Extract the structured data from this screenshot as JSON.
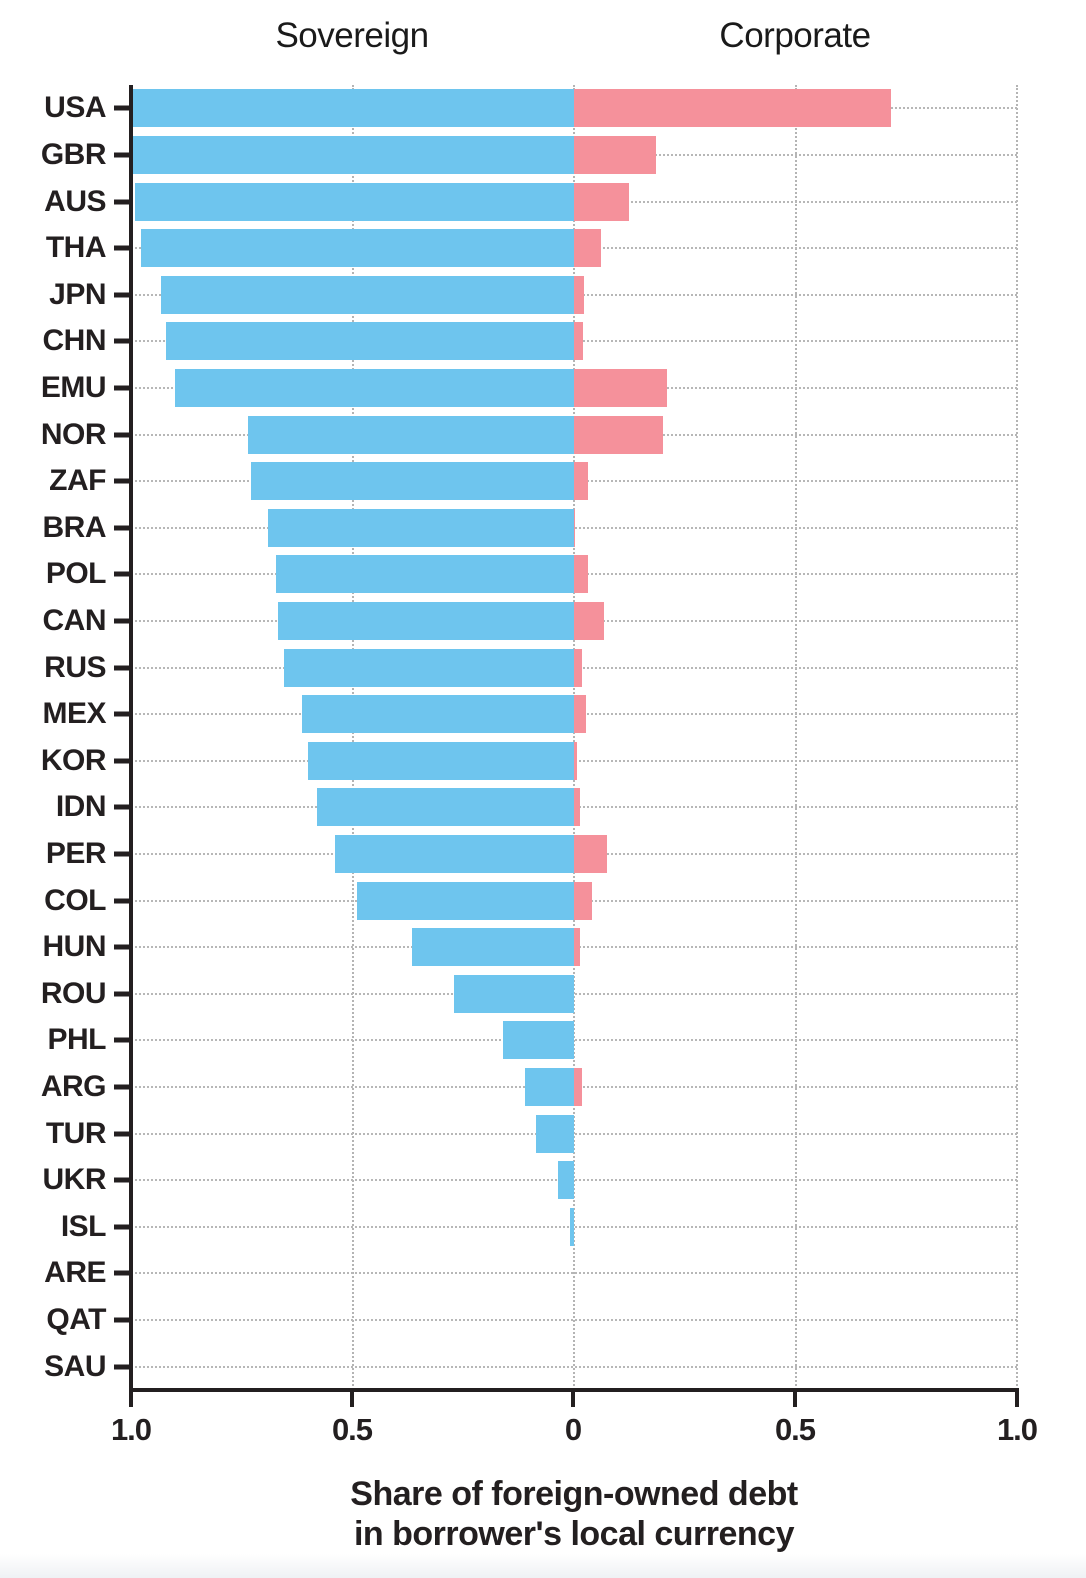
{
  "chart_data": {
    "type": "bar",
    "orientation": "diverging-horizontal",
    "left_header": "Sovereign",
    "right_header": "Corporate",
    "caption_line1": "Share of foreign-owned debt",
    "caption_line2": "in borrower's local currency",
    "axis_range_each_side": [
      0,
      1.0
    ],
    "grid": "dotted",
    "colors": {
      "sovereign": "#6ec5ee",
      "corporate": "#f5919b",
      "text": "#231f20",
      "gridline": "#b4b4b4"
    },
    "x_ticks": [
      {
        "label": "1.0",
        "pos": 0
      },
      {
        "label": "0.5",
        "pos": 25
      },
      {
        "label": "0",
        "pos": 50
      },
      {
        "label": "0.5",
        "pos": 75
      },
      {
        "label": "1.0",
        "pos": 100
      }
    ],
    "series": [
      {
        "name": "Sovereign",
        "side": "left"
      },
      {
        "name": "Corporate",
        "side": "right"
      }
    ],
    "rows": [
      {
        "code": "USA",
        "sovereign": 1.0,
        "corporate": 0.715
      },
      {
        "code": "GBR",
        "sovereign": 1.0,
        "corporate": 0.185
      },
      {
        "code": "AUS",
        "sovereign": 0.99,
        "corporate": 0.125
      },
      {
        "code": "THA",
        "sovereign": 0.978,
        "corporate": 0.06
      },
      {
        "code": "JPN",
        "sovereign": 0.932,
        "corporate": 0.023
      },
      {
        "code": "CHN",
        "sovereign": 0.92,
        "corporate": 0.021
      },
      {
        "code": "EMU",
        "sovereign": 0.9,
        "corporate": 0.21
      },
      {
        "code": "NOR",
        "sovereign": 0.735,
        "corporate": 0.2
      },
      {
        "code": "ZAF",
        "sovereign": 0.73,
        "corporate": 0.032
      },
      {
        "code": "BRA",
        "sovereign": 0.69,
        "corporate": 0.003
      },
      {
        "code": "POL",
        "sovereign": 0.672,
        "corporate": 0.032
      },
      {
        "code": "CAN",
        "sovereign": 0.668,
        "corporate": 0.068
      },
      {
        "code": "RUS",
        "sovereign": 0.655,
        "corporate": 0.018
      },
      {
        "code": "MEX",
        "sovereign": 0.615,
        "corporate": 0.027
      },
      {
        "code": "KOR",
        "sovereign": 0.6,
        "corporate": 0.006
      },
      {
        "code": "IDN",
        "sovereign": 0.58,
        "corporate": 0.014
      },
      {
        "code": "PER",
        "sovereign": 0.54,
        "corporate": 0.074
      },
      {
        "code": "COL",
        "sovereign": 0.49,
        "corporate": 0.04
      },
      {
        "code": "HUN",
        "sovereign": 0.365,
        "corporate": 0.014
      },
      {
        "code": "ROU",
        "sovereign": 0.27,
        "corporate": 0.0
      },
      {
        "code": "PHL",
        "sovereign": 0.16,
        "corporate": 0.0
      },
      {
        "code": "ARG",
        "sovereign": 0.11,
        "corporate": 0.018
      },
      {
        "code": "TUR",
        "sovereign": 0.085,
        "corporate": 0.0
      },
      {
        "code": "UKR",
        "sovereign": 0.036,
        "corporate": 0.0
      },
      {
        "code": "ISL",
        "sovereign": 0.008,
        "corporate": 0.0
      },
      {
        "code": "ARE",
        "sovereign": 0.0,
        "corporate": 0.0
      },
      {
        "code": "QAT",
        "sovereign": 0.0,
        "corporate": 0.0
      },
      {
        "code": "SAU",
        "sovereign": 0.0,
        "corporate": 0.0
      }
    ]
  }
}
